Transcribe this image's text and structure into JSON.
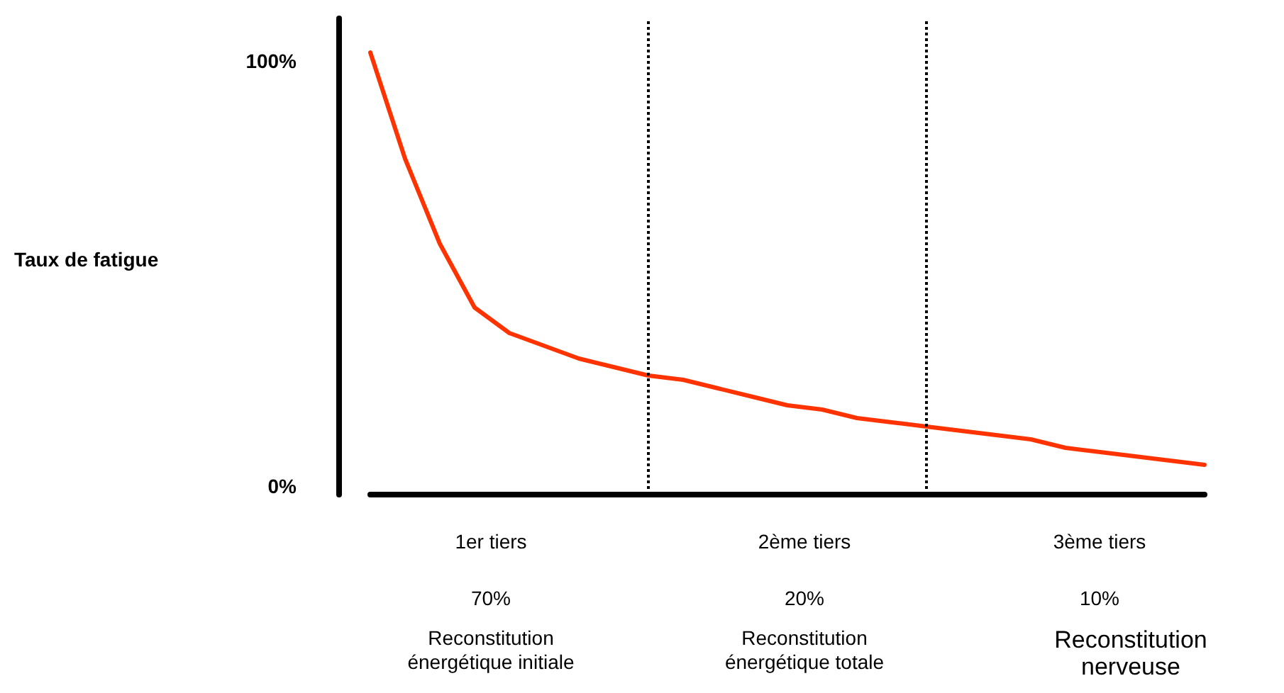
{
  "chart_data": {
    "type": "line",
    "ylabel": "Taux de fatigue",
    "categories": [
      null,
      null,
      null,
      null,
      null,
      null,
      null,
      null,
      null,
      null,
      null,
      null,
      null,
      null,
      null,
      null,
      null,
      null,
      null,
      null,
      null,
      null,
      null,
      null,
      null
    ],
    "series": [
      {
        "color": "#ff3300",
        "values": [
          102,
          77,
          57,
          42,
          36,
          33,
          30,
          28,
          26,
          25,
          23,
          21,
          19,
          18,
          16,
          15,
          14,
          13,
          12,
          11,
          9,
          8,
          7,
          6,
          5
        ]
      }
    ],
    "ylim": [
      -2,
      110
    ],
    "yticks": [
      {
        "value": 0,
        "label": "0%"
      },
      {
        "value": 100,
        "label": "100%"
      }
    ],
    "tick_labels": "y",
    "grid": false,
    "marker": "none",
    "line_style": "solid",
    "annotations": [
      "1er tiers",
      "70%",
      "Reconstitution\nénergétique initiale",
      "2ème tiers",
      "20%",
      "Reconstitution\nénergétique totale",
      "3ème tiers",
      "10%",
      "Reconstitution\nnerveuse"
    ]
  }
}
